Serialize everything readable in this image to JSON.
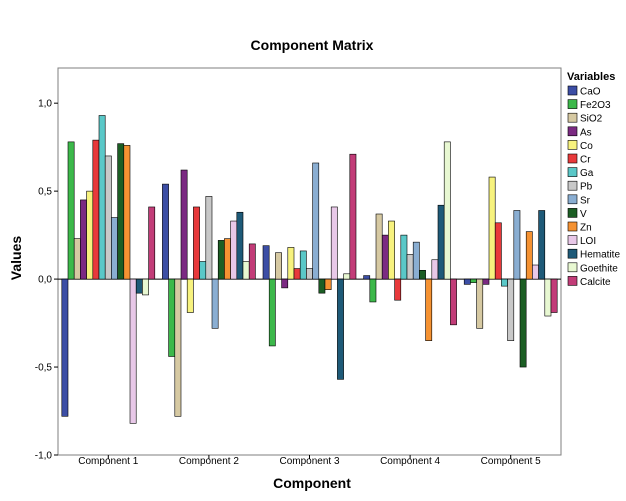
{
  "chart_data": {
    "type": "bar",
    "title": "Component Matrix",
    "xlabel": "Component",
    "ylabel": "Values",
    "ylim": [
      -1.0,
      1.2
    ],
    "yticks": [
      "-1,0",
      "-0,5",
      "0,0",
      "0,5",
      "1,0"
    ],
    "ytick_values": [
      -1.0,
      -0.5,
      0.0,
      0.5,
      1.0
    ],
    "legend_title": "Variables",
    "legend_position": "right",
    "categories": [
      "Component 1",
      "Component 2",
      "Component 3",
      "Component 4",
      "Component 5"
    ],
    "series": [
      {
        "name": "CaO",
        "color": "#3c4ea5",
        "values": [
          -0.78,
          0.54,
          0.19,
          0.02,
          -0.03
        ]
      },
      {
        "name": "Fe2O3",
        "color": "#3cb84a",
        "values": [
          0.78,
          -0.44,
          -0.38,
          -0.13,
          -0.02
        ]
      },
      {
        "name": "SiO2",
        "color": "#d6c9a2",
        "values": [
          0.23,
          -0.78,
          0.15,
          0.37,
          -0.28
        ]
      },
      {
        "name": "As",
        "color": "#7b2a82",
        "values": [
          0.45,
          0.62,
          -0.05,
          0.25,
          -0.03
        ]
      },
      {
        "name": "Co",
        "color": "#f7f27e",
        "values": [
          0.5,
          -0.19,
          0.18,
          0.33,
          0.58
        ]
      },
      {
        "name": "Cr",
        "color": "#e8393b",
        "values": [
          0.79,
          0.41,
          0.06,
          -0.12,
          0.32
        ]
      },
      {
        "name": "Ga",
        "color": "#5ac8c8",
        "values": [
          0.93,
          0.1,
          0.16,
          0.25,
          -0.04
        ]
      },
      {
        "name": "Pb",
        "color": "#c8c8c8",
        "values": [
          0.7,
          0.47,
          0.06,
          0.14,
          -0.35
        ]
      },
      {
        "name": "Sr",
        "color": "#8aaed2",
        "values": [
          0.35,
          -0.28,
          0.66,
          0.21,
          0.39
        ]
      },
      {
        "name": "V",
        "color": "#1c5e24",
        "values": [
          0.77,
          0.22,
          -0.08,
          0.05,
          -0.5
        ]
      },
      {
        "name": "Zn",
        "color": "#f59232",
        "values": [
          0.76,
          0.23,
          -0.06,
          -0.35,
          0.27
        ]
      },
      {
        "name": "LOI",
        "color": "#e8c8e8",
        "values": [
          -0.82,
          0.33,
          0.41,
          0.11,
          0.08
        ]
      },
      {
        "name": "Hematite",
        "color": "#1e5a78",
        "values": [
          -0.08,
          0.38,
          -0.57,
          0.42,
          0.39
        ]
      },
      {
        "name": "Goethite",
        "color": "#e8f8d2",
        "values": [
          -0.09,
          0.1,
          0.03,
          0.78,
          -0.21
        ]
      },
      {
        "name": "Calcite",
        "color": "#c23c78",
        "values": [
          0.41,
          0.2,
          0.71,
          -0.26,
          -0.19
        ]
      }
    ]
  },
  "style": {
    "background": "#ffffff",
    "plot_background": "#ffffff",
    "axis_color": "#000000",
    "frame_color": "#7f7f7f"
  }
}
